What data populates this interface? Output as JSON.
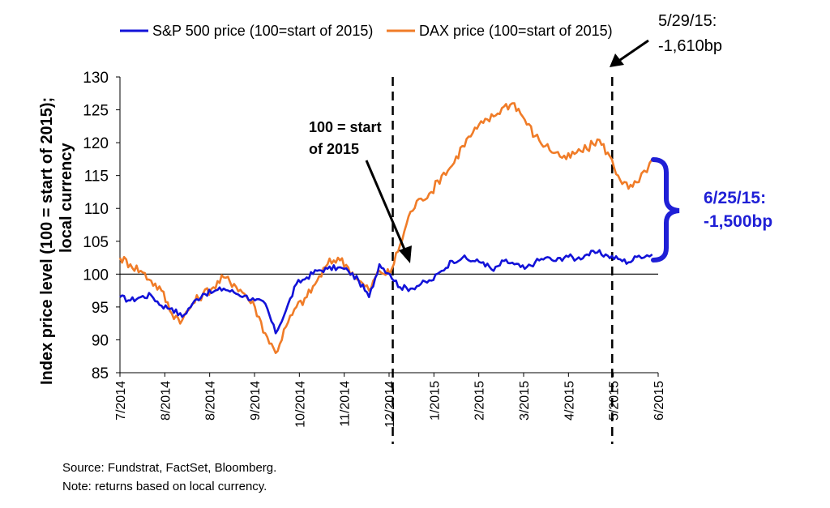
{
  "chart_data": {
    "type": "line",
    "title": "",
    "ylabel": "Index price level (100 = start of 2015); local currency",
    "xlabel": "",
    "ylim": [
      85,
      130
    ],
    "yticks": [
      85,
      90,
      95,
      100,
      105,
      110,
      115,
      120,
      125,
      130
    ],
    "xticks": [
      "7/2014",
      "8/2014",
      "8/2014",
      "9/2014",
      "10/2014",
      "11/2014",
      "12/2014",
      "1/2015",
      "2/2015",
      "3/2015",
      "4/2015",
      "5/2015",
      "6/2015"
    ],
    "reference_line": 100,
    "legend_position": "top",
    "colors": {
      "sp500": "#1212d8",
      "dax": "#f07c28",
      "annotation_blue": "#1f1fd6"
    },
    "series": [
      {
        "name": "S&P 500 price (100=start of 2015)",
        "x": [
          "2014-07-01",
          "2014-07-08",
          "2014-07-15",
          "2014-07-22",
          "2014-07-29",
          "2014-08-05",
          "2014-08-12",
          "2014-08-19",
          "2014-08-26",
          "2014-09-02",
          "2014-09-09",
          "2014-09-16",
          "2014-09-23",
          "2014-09-30",
          "2014-10-07",
          "2014-10-14",
          "2014-10-21",
          "2014-10-28",
          "2014-11-04",
          "2014-11-11",
          "2014-11-18",
          "2014-11-25",
          "2014-12-02",
          "2014-12-09",
          "2014-12-16",
          "2014-12-23",
          "2014-12-30",
          "2015-01-06",
          "2015-01-13",
          "2015-01-20",
          "2015-01-27",
          "2015-02-03",
          "2015-02-10",
          "2015-02-17",
          "2015-02-24",
          "2015-03-03",
          "2015-03-10",
          "2015-03-17",
          "2015-03-24",
          "2015-03-31",
          "2015-04-07",
          "2015-04-14",
          "2015-04-21",
          "2015-04-28",
          "2015-05-05",
          "2015-05-12",
          "2015-05-19",
          "2015-05-26",
          "2015-06-02",
          "2015-06-09",
          "2015-06-16",
          "2015-06-25"
        ],
        "values": [
          96.5,
          96.0,
          96.5,
          96.8,
          95.2,
          94.8,
          93.5,
          95.5,
          97.0,
          97.3,
          97.8,
          97.2,
          96.7,
          96.0,
          95.5,
          91.0,
          94.5,
          98.5,
          99.5,
          100.5,
          100.8,
          101.0,
          100.5,
          99.0,
          96.5,
          101.5,
          100.0,
          98.0,
          97.8,
          98.5,
          99.0,
          100.5,
          102.0,
          102.5,
          102.0,
          101.8,
          100.5,
          102.0,
          101.5,
          100.8,
          101.8,
          102.5,
          102.0,
          102.8,
          102.3,
          103.0,
          103.3,
          102.8,
          102.3,
          101.8,
          102.8,
          103.0
        ]
      },
      {
        "name": "DAX price (100=start of 2015)",
        "x": [
          "2014-07-01",
          "2014-07-08",
          "2014-07-15",
          "2014-07-22",
          "2014-07-29",
          "2014-08-05",
          "2014-08-12",
          "2014-08-19",
          "2014-08-26",
          "2014-09-02",
          "2014-09-09",
          "2014-09-16",
          "2014-09-23",
          "2014-09-30",
          "2014-10-07",
          "2014-10-14",
          "2014-10-21",
          "2014-10-28",
          "2014-11-04",
          "2014-11-11",
          "2014-11-18",
          "2014-11-25",
          "2014-12-02",
          "2014-12-09",
          "2014-12-16",
          "2014-12-23",
          "2014-12-30",
          "2015-01-06",
          "2015-01-13",
          "2015-01-20",
          "2015-01-27",
          "2015-02-03",
          "2015-02-10",
          "2015-02-17",
          "2015-02-24",
          "2015-03-03",
          "2015-03-10",
          "2015-03-17",
          "2015-03-24",
          "2015-03-31",
          "2015-04-07",
          "2015-04-14",
          "2015-04-21",
          "2015-04-28",
          "2015-05-05",
          "2015-05-12",
          "2015-05-19",
          "2015-05-26",
          "2015-06-02",
          "2015-06-09",
          "2015-06-16",
          "2015-06-25"
        ],
        "values": [
          102.5,
          101.5,
          100.5,
          99.0,
          97.5,
          94.0,
          93.0,
          95.5,
          97.0,
          98.0,
          99.5,
          98.5,
          97.0,
          95.0,
          91.0,
          88.0,
          92.0,
          95.0,
          96.5,
          99.0,
          101.5,
          102.5,
          101.0,
          99.0,
          97.5,
          100.5,
          100.0,
          104.5,
          109.5,
          111.5,
          112.5,
          115.0,
          116.5,
          119.5,
          121.5,
          123.0,
          124.0,
          125.5,
          126.0,
          123.5,
          121.0,
          119.5,
          118.5,
          117.5,
          118.5,
          119.0,
          120.5,
          118.5,
          115.0,
          113.0,
          114.0,
          117.5
        ]
      }
    ],
    "annotations": {
      "start_2015_line1": "100 = start",
      "start_2015_line2": "of 2015",
      "may_label_line1": "5/29/15:",
      "may_label_line2": "-1,610bp",
      "june_label_line1": "6/25/15:",
      "june_label_line2": "-1,500bp"
    }
  },
  "footnotes": {
    "source": "Source: Fundstrat, FactSet, Bloomberg.",
    "note": "Note: returns based on local currency."
  }
}
